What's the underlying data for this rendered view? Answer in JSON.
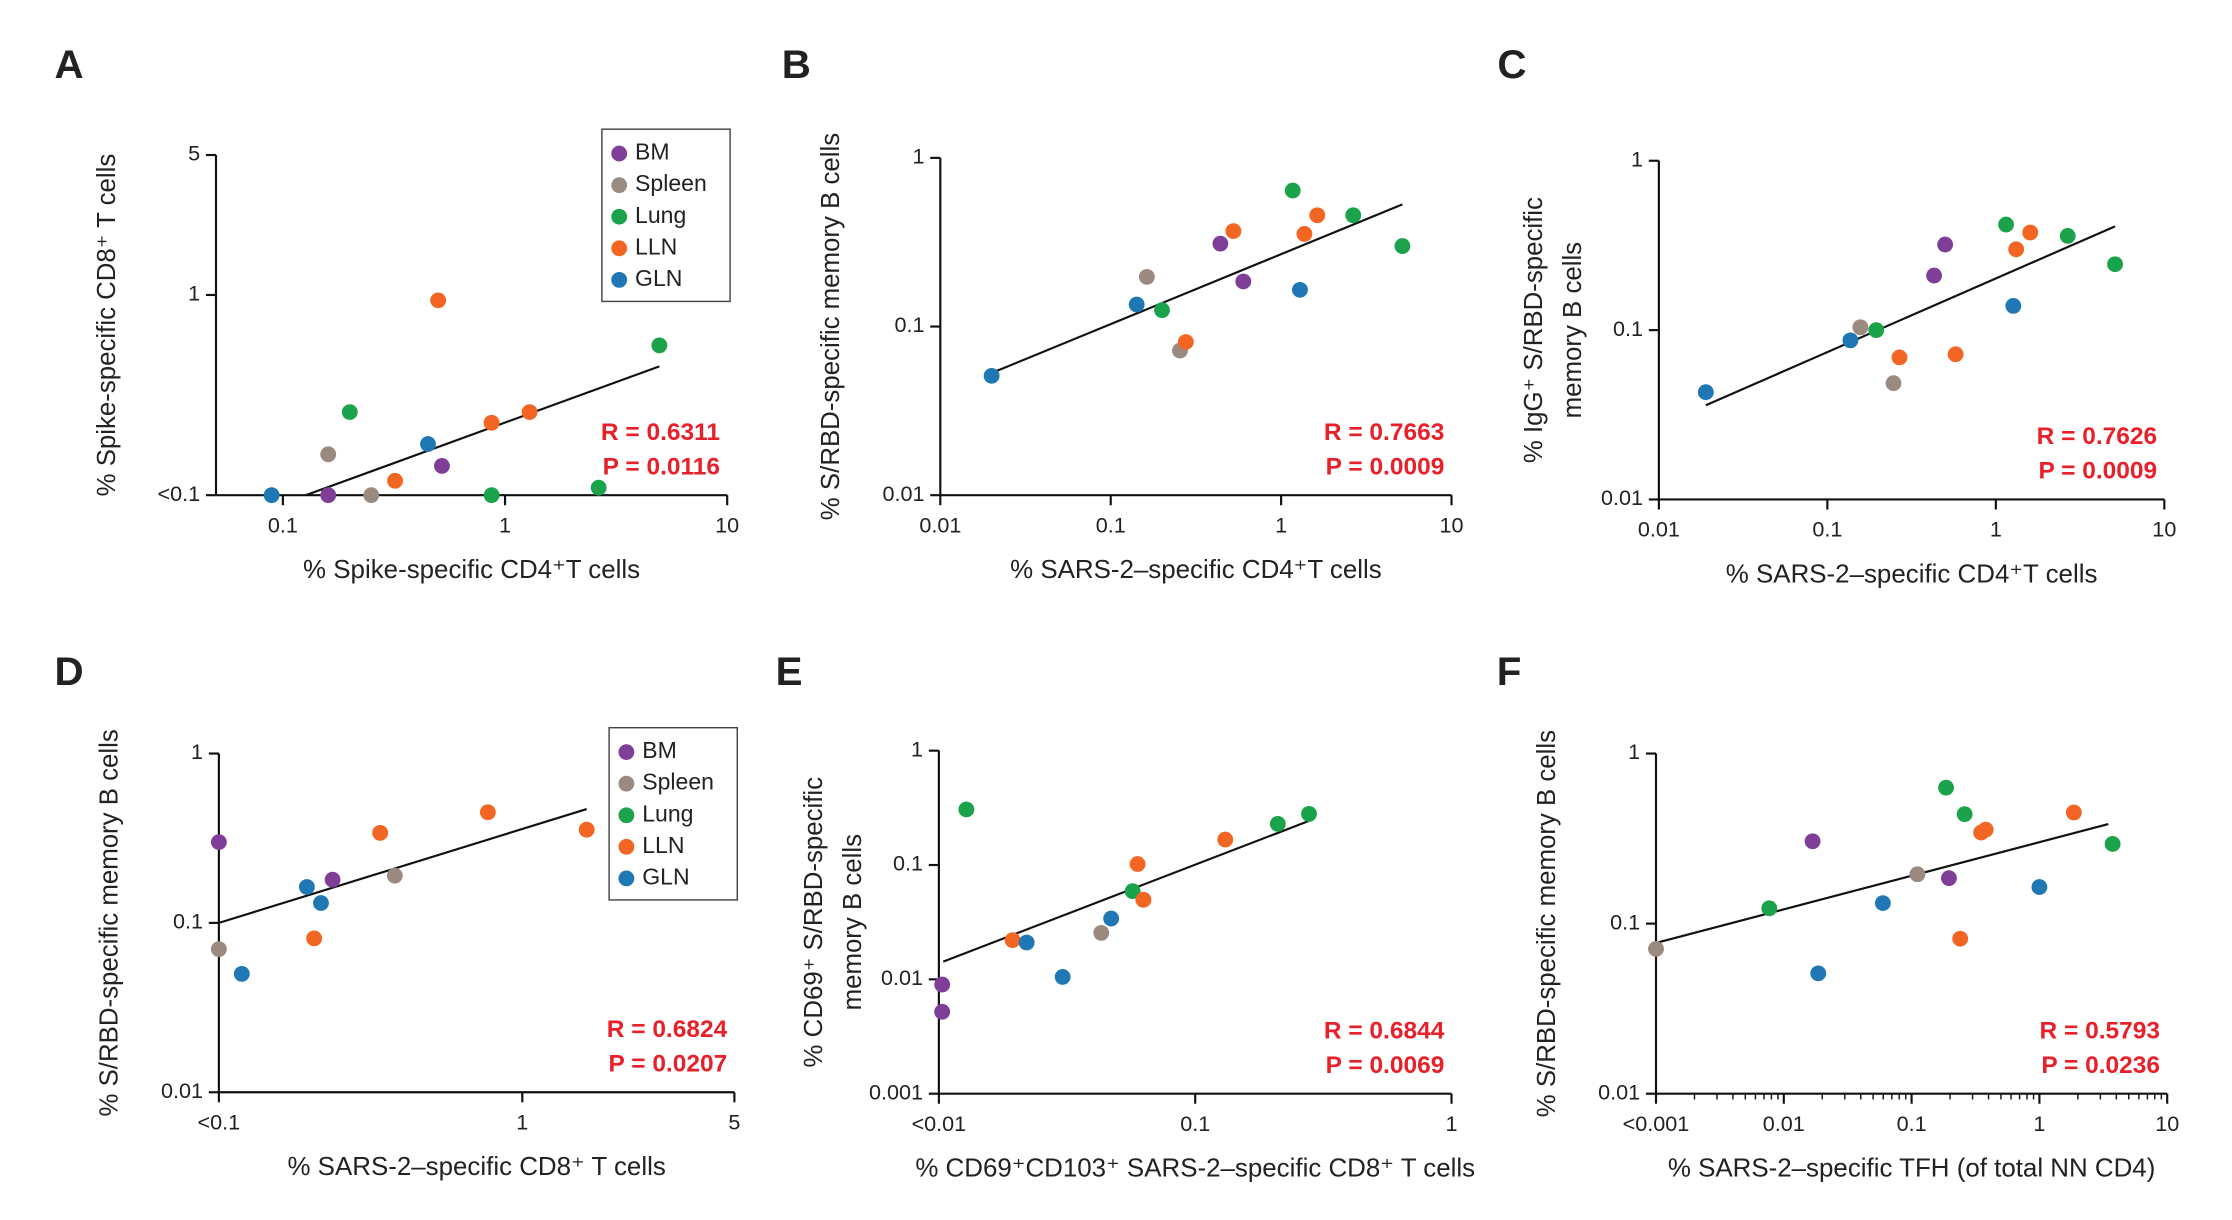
{
  "chart_data": [
    {
      "type": "scatter",
      "title": "A",
      "xlabel": "% Spike-specific CD4⁺T cells",
      "ylabel": [
        "% Spike-specific CD8⁺ T cells"
      ],
      "log_x": true,
      "log_y": true,
      "xlim": [
        0.05,
        10
      ],
      "ylim": [
        0.1,
        5
      ],
      "xticks": [
        0.1,
        1,
        10
      ],
      "yticks": [
        {
          "value": 0.1,
          "label": "<0.1"
        },
        1,
        5
      ],
      "legend": "upper right",
      "r_text": "R = 0.6311",
      "p_text": "P = 0.0116",
      "series": [
        {
          "name": "BM",
          "color": "#7f3f98",
          "x": [
            0.16,
            0.52
          ],
          "values": [
            0.1,
            0.14
          ]
        },
        {
          "name": "Spleen",
          "color": "#9a8a7f",
          "x": [
            0.16,
            0.25
          ],
          "values": [
            0.16,
            0.1
          ]
        },
        {
          "name": "Lung",
          "color": "#1aa34a",
          "x": [
            0.2,
            4.95,
            0.87,
            2.64
          ],
          "values": [
            0.26,
            0.56,
            0.1,
            0.109
          ]
        },
        {
          "name": "LLN",
          "color": "#f26522",
          "x": [
            0.5,
            0.32,
            0.87,
            1.29
          ],
          "values": [
            0.94,
            0.118,
            0.23,
            0.26
          ]
        },
        {
          "name": "GLN",
          "color": "#1f78b4",
          "x": [
            0.089,
            0.45
          ],
          "values": [
            0.1,
            0.18
          ]
        }
      ],
      "fit": {
        "x": [
          0.127,
          4.95
        ],
        "values": [
          0.1,
          0.44
        ]
      }
    },
    {
      "type": "scatter",
      "title": "B",
      "xlabel": "% SARS-2–specific CD4⁺T cells",
      "ylabel": [
        "% S/RBD-specific memory B cells"
      ],
      "log_x": true,
      "log_y": true,
      "xlim": [
        0.01,
        10
      ],
      "ylim": [
        0.01,
        1
      ],
      "xticks": [
        0.01,
        0.1,
        1,
        10
      ],
      "yticks": [
        0.01,
        0.1,
        1
      ],
      "r_text": "R = 0.7663",
      "p_text": "P = 0.0009",
      "series": [
        {
          "name": "BM",
          "color": "#7f3f98",
          "x": [
            0.44,
            0.6
          ],
          "values": [
            0.31,
            0.185
          ]
        },
        {
          "name": "Spleen",
          "color": "#9a8a7f",
          "x": [
            0.163,
            0.255
          ],
          "values": [
            0.197,
            0.072
          ]
        },
        {
          "name": "Lung",
          "color": "#1aa34a",
          "x": [
            1.17,
            2.65,
            5.15,
            0.2
          ],
          "values": [
            0.64,
            0.457,
            0.3,
            0.125
          ]
        },
        {
          "name": "LLN",
          "color": "#f26522",
          "x": [
            0.525,
            1.37,
            1.63,
            0.276
          ],
          "values": [
            0.368,
            0.354,
            0.457,
            0.081
          ]
        },
        {
          "name": "GLN",
          "color": "#1f78b4",
          "x": [
            0.02,
            0.142,
            1.29
          ],
          "values": [
            0.051,
            0.135,
            0.165
          ]
        }
      ],
      "fit": {
        "x": [
          0.02,
          5.15
        ],
        "values": [
          0.053,
          0.53
        ]
      }
    },
    {
      "type": "scatter",
      "title": "C",
      "xlabel": "% SARS-2–specific CD4⁺T cells",
      "ylabel": [
        "% IgG⁺ S/RBD-specific",
        "memory B cells"
      ],
      "log_x": true,
      "log_y": true,
      "xlim": [
        0.01,
        10
      ],
      "ylim": [
        0.01,
        1
      ],
      "xticks": [
        0.01,
        0.1,
        1,
        10
      ],
      "yticks": [
        0.01,
        0.1,
        1
      ],
      "r_text": "R = 0.7626",
      "p_text": "P = 0.0009",
      "series": [
        {
          "name": "BM",
          "color": "#7f3f98",
          "x": [
            0.5,
            0.43
          ],
          "values": [
            0.32,
            0.21
          ]
        },
        {
          "name": "Spleen",
          "color": "#9a8a7f",
          "x": [
            0.157,
            0.247
          ],
          "values": [
            0.104,
            0.0486
          ]
        },
        {
          "name": "Lung",
          "color": "#1aa34a",
          "x": [
            1.15,
            2.67,
            5.1,
            0.195
          ],
          "values": [
            0.42,
            0.36,
            0.245,
            0.1
          ]
        },
        {
          "name": "LLN",
          "color": "#f26522",
          "x": [
            1.6,
            1.32,
            0.268,
            0.577
          ],
          "values": [
            0.377,
            0.3,
            0.069,
            0.072
          ]
        },
        {
          "name": "GLN",
          "color": "#1f78b4",
          "x": [
            0.019,
            0.137,
            1.27
          ],
          "values": [
            0.043,
            0.087,
            0.139
          ]
        }
      ],
      "fit": {
        "x": [
          0.019,
          5.1
        ],
        "values": [
          0.036,
          0.41
        ]
      }
    },
    {
      "type": "scatter",
      "title": "D",
      "xlabel": "% SARS-2–specific CD8⁺ T cells",
      "ylabel": [
        "% S/RBD-specific memory B cells"
      ],
      "log_x": true,
      "log_y": true,
      "xlim": [
        0.1,
        5
      ],
      "ylim": [
        0.01,
        1
      ],
      "xticks": [
        {
          "value": 0.1,
          "label": "<0.1"
        },
        1,
        5
      ],
      "yticks": [
        0.01,
        0.1,
        1
      ],
      "legend": "upper right",
      "r_text": "R = 0.6824",
      "p_text": "P = 0.0207",
      "series": [
        {
          "name": "BM",
          "color": "#7f3f98",
          "x": [
            0.1,
            0.237
          ],
          "values": [
            0.3,
            0.18
          ]
        },
        {
          "name": "Spleen",
          "color": "#9a8a7f",
          "x": [
            0.1,
            0.38
          ],
          "values": [
            0.07,
            0.19
          ]
        },
        {
          "name": "Lung",
          "color": "#1aa34a",
          "x": [],
          "values": []
        },
        {
          "name": "LLN",
          "color": "#f26522",
          "x": [
            0.34,
            0.77,
            1.63,
            0.206
          ],
          "values": [
            0.34,
            0.45,
            0.355,
            0.081
          ]
        },
        {
          "name": "GLN",
          "color": "#1f78b4",
          "x": [
            0.119,
            0.195,
            0.217
          ],
          "values": [
            0.05,
            0.163,
            0.131
          ]
        }
      ],
      "fit": {
        "x": [
          0.1,
          1.63
        ],
        "values": [
          0.1,
          0.47
        ]
      }
    },
    {
      "type": "scatter",
      "title": "E",
      "xlabel": "% CD69⁺CD103⁺ SARS-2–specific CD8⁺ T cells",
      "ylabel": [
        "% CD69⁺ S/RBD-specific",
        "memory B cells"
      ],
      "log_x": true,
      "log_y": true,
      "xlim": [
        0.01,
        1
      ],
      "ylim": [
        0.001,
        1
      ],
      "xticks": [
        {
          "value": 0.01,
          "label": "<0.01"
        },
        0.1,
        1
      ],
      "yticks": [
        0.001,
        0.01,
        0.1,
        1
      ],
      "r_text": "R = 0.6844",
      "p_text": "P = 0.0069",
      "series": [
        {
          "name": "BM",
          "color": "#7f3f98",
          "x": [
            0.0103,
            0.0103
          ],
          "values": [
            0.009,
            0.0052
          ]
        },
        {
          "name": "Spleen",
          "color": "#9a8a7f",
          "x": [
            0.043
          ],
          "values": [
            0.0255
          ]
        },
        {
          "name": "Lung",
          "color": "#1aa34a",
          "x": [
            0.0128,
            0.057,
            0.21,
            0.278
          ],
          "values": [
            0.306,
            0.059,
            0.229,
            0.28
          ]
        },
        {
          "name": "LLN",
          "color": "#f26522",
          "x": [
            0.0194,
            0.0596,
            0.0628,
            0.131
          ],
          "values": [
            0.022,
            0.102,
            0.0496,
            0.167
          ]
        },
        {
          "name": "GLN",
          "color": "#1f78b4",
          "x": [
            0.022,
            0.0304,
            0.047
          ],
          "values": [
            0.021,
            0.0105,
            0.034
          ]
        }
      ],
      "fit": {
        "x": [
          0.0104,
          0.278
        ],
        "values": [
          0.0143,
          0.243
        ]
      }
    },
    {
      "type": "scatter",
      "title": "F",
      "xlabel": "% SARS-2–specific TFH (of total NN CD4)",
      "ylabel": [
        "% S/RBD-specific memory B cells"
      ],
      "log_x": true,
      "log_y": true,
      "minor_xticks": true,
      "xlim": [
        0.001,
        10
      ],
      "ylim": [
        0.01,
        1
      ],
      "xticks": [
        {
          "value": 0.001,
          "label": "<0.001"
        },
        0.01,
        0.1,
        1,
        10
      ],
      "yticks": [
        0.01,
        0.1,
        1
      ],
      "r_text": "R = 0.5793",
      "p_text": "P = 0.0236",
      "series": [
        {
          "name": "BM",
          "color": "#7f3f98",
          "x": [
            0.0168,
            0.196
          ],
          "values": [
            0.305,
            0.185
          ]
        },
        {
          "name": "Spleen",
          "color": "#9a8a7f",
          "x": [
            0.001,
            0.111
          ],
          "values": [
            0.071,
            0.195
          ]
        },
        {
          "name": "Lung",
          "color": "#1aa34a",
          "x": [
            0.0077,
            0.186,
            0.26,
            3.74
          ],
          "values": [
            0.123,
            0.63,
            0.44,
            0.294
          ]
        },
        {
          "name": "LLN",
          "color": "#f26522",
          "x": [
            0.35,
            0.38,
            1.86,
            0.24
          ],
          "values": [
            0.343,
            0.357,
            0.45,
            0.0815
          ]
        },
        {
          "name": "GLN",
          "color": "#1f78b4",
          "x": [
            0.0186,
            0.0596,
            1.0
          ],
          "values": [
            0.051,
            0.132,
            0.164
          ]
        }
      ],
      "fit": {
        "x": [
          0.001,
          3.46
        ],
        "values": [
          0.077,
          0.385
        ]
      }
    }
  ]
}
